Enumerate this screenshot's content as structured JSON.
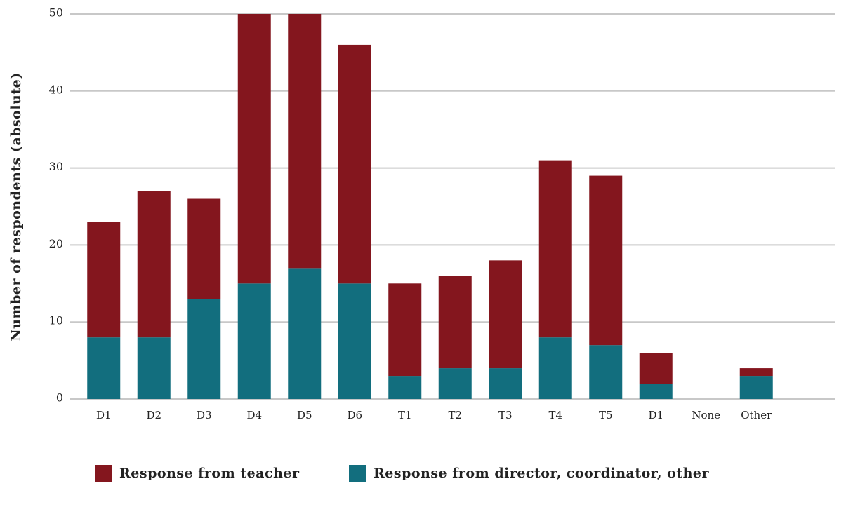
{
  "chart_data": {
    "type": "stacked_bar",
    "y_label": "Number of respondents (absolute)",
    "categories": [
      "D1",
      "D2",
      "D3",
      "D4",
      "D5",
      "D6",
      "T1",
      "T2",
      "T3",
      "T4",
      "T5",
      "D1",
      "None",
      "Other"
    ],
    "series": [
      {
        "name": "Response from teacher",
        "color": "#84161e",
        "values": [
          15,
          19,
          13,
          35,
          33,
          31,
          12,
          12,
          14,
          23,
          22,
          4,
          0,
          1
        ]
      },
      {
        "name": "Response from director, coordinator, other",
        "color": "#126e7e",
        "values": [
          8,
          8,
          13,
          15,
          17,
          15,
          3,
          4,
          4,
          8,
          7,
          2,
          0,
          3
        ]
      }
    ],
    "ylim": [
      0,
      50
    ],
    "yticks": [
      0,
      10,
      20,
      30,
      40,
      50
    ],
    "grid": true,
    "legend": "bottom"
  }
}
